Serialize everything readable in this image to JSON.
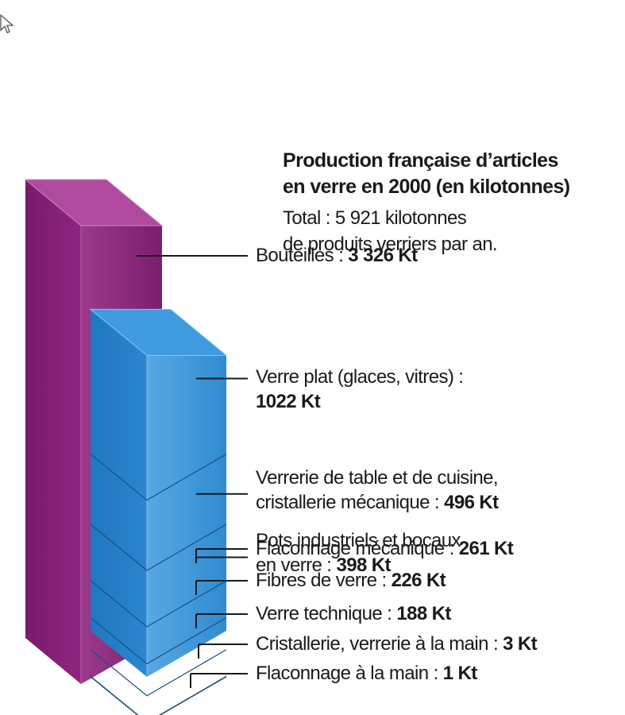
{
  "title": "Production française d’articles en verre en 2000 (en kilotonnes)",
  "title_line1": "Production française d’articles",
  "title_line2": "en verre en 2000 (en kilotonnes)",
  "subtitle_line1": "Total : 5 921 kilotonnes",
  "subtitle_line2": "de produits verriers par an.",
  "colors": {
    "purple": "#8a1f7a",
    "blue": "#2a86cf",
    "leader": "#1a1a1a"
  },
  "chart_data": {
    "type": "bar",
    "unit": "Kt",
    "total": 5921,
    "series": [
      {
        "values": [
          {
            "label_lines": [
              "Bouteilles :"
            ],
            "value_text": "3 326 Kt",
            "value": 3326,
            "stack": "purple"
          },
          {
            "label_lines": [
              "Verre plat (glaces, vitres) :"
            ],
            "value_text": "1022 Kt",
            "value": 1022,
            "stack": "blue",
            "value_newline": true
          },
          {
            "label_lines": [
              "Verrerie de table et de cuisine,",
              "cristallerie mécanique :"
            ],
            "value_text": "496 Kt",
            "value": 496,
            "stack": "blue"
          },
          {
            "label_lines": [
              "Pots industriels et bocaux",
              "en verre :"
            ],
            "value_text": "398 Kt",
            "value": 398,
            "stack": "blue"
          },
          {
            "label_lines": [
              "Flaconnage mécanique :"
            ],
            "value_text": "261 Kt",
            "value": 261,
            "stack": "blue"
          },
          {
            "label_lines": [
              "Fibres de verre :"
            ],
            "value_text": "226 Kt",
            "value": 226,
            "stack": "blue"
          },
          {
            "label_lines": [
              "Verre technique :"
            ],
            "value_text": "188 Kt",
            "value": 188,
            "stack": "blue"
          },
          {
            "label_lines": [
              "Cristallerie, verrerie à la main :"
            ],
            "value_text": "3 Kt",
            "value": 3,
            "stack": "blue"
          },
          {
            "label_lines": [
              "Flaconnage à la main :"
            ],
            "value_text": "1 Kt",
            "value": 1,
            "stack": "blue"
          }
        ]
      }
    ]
  }
}
